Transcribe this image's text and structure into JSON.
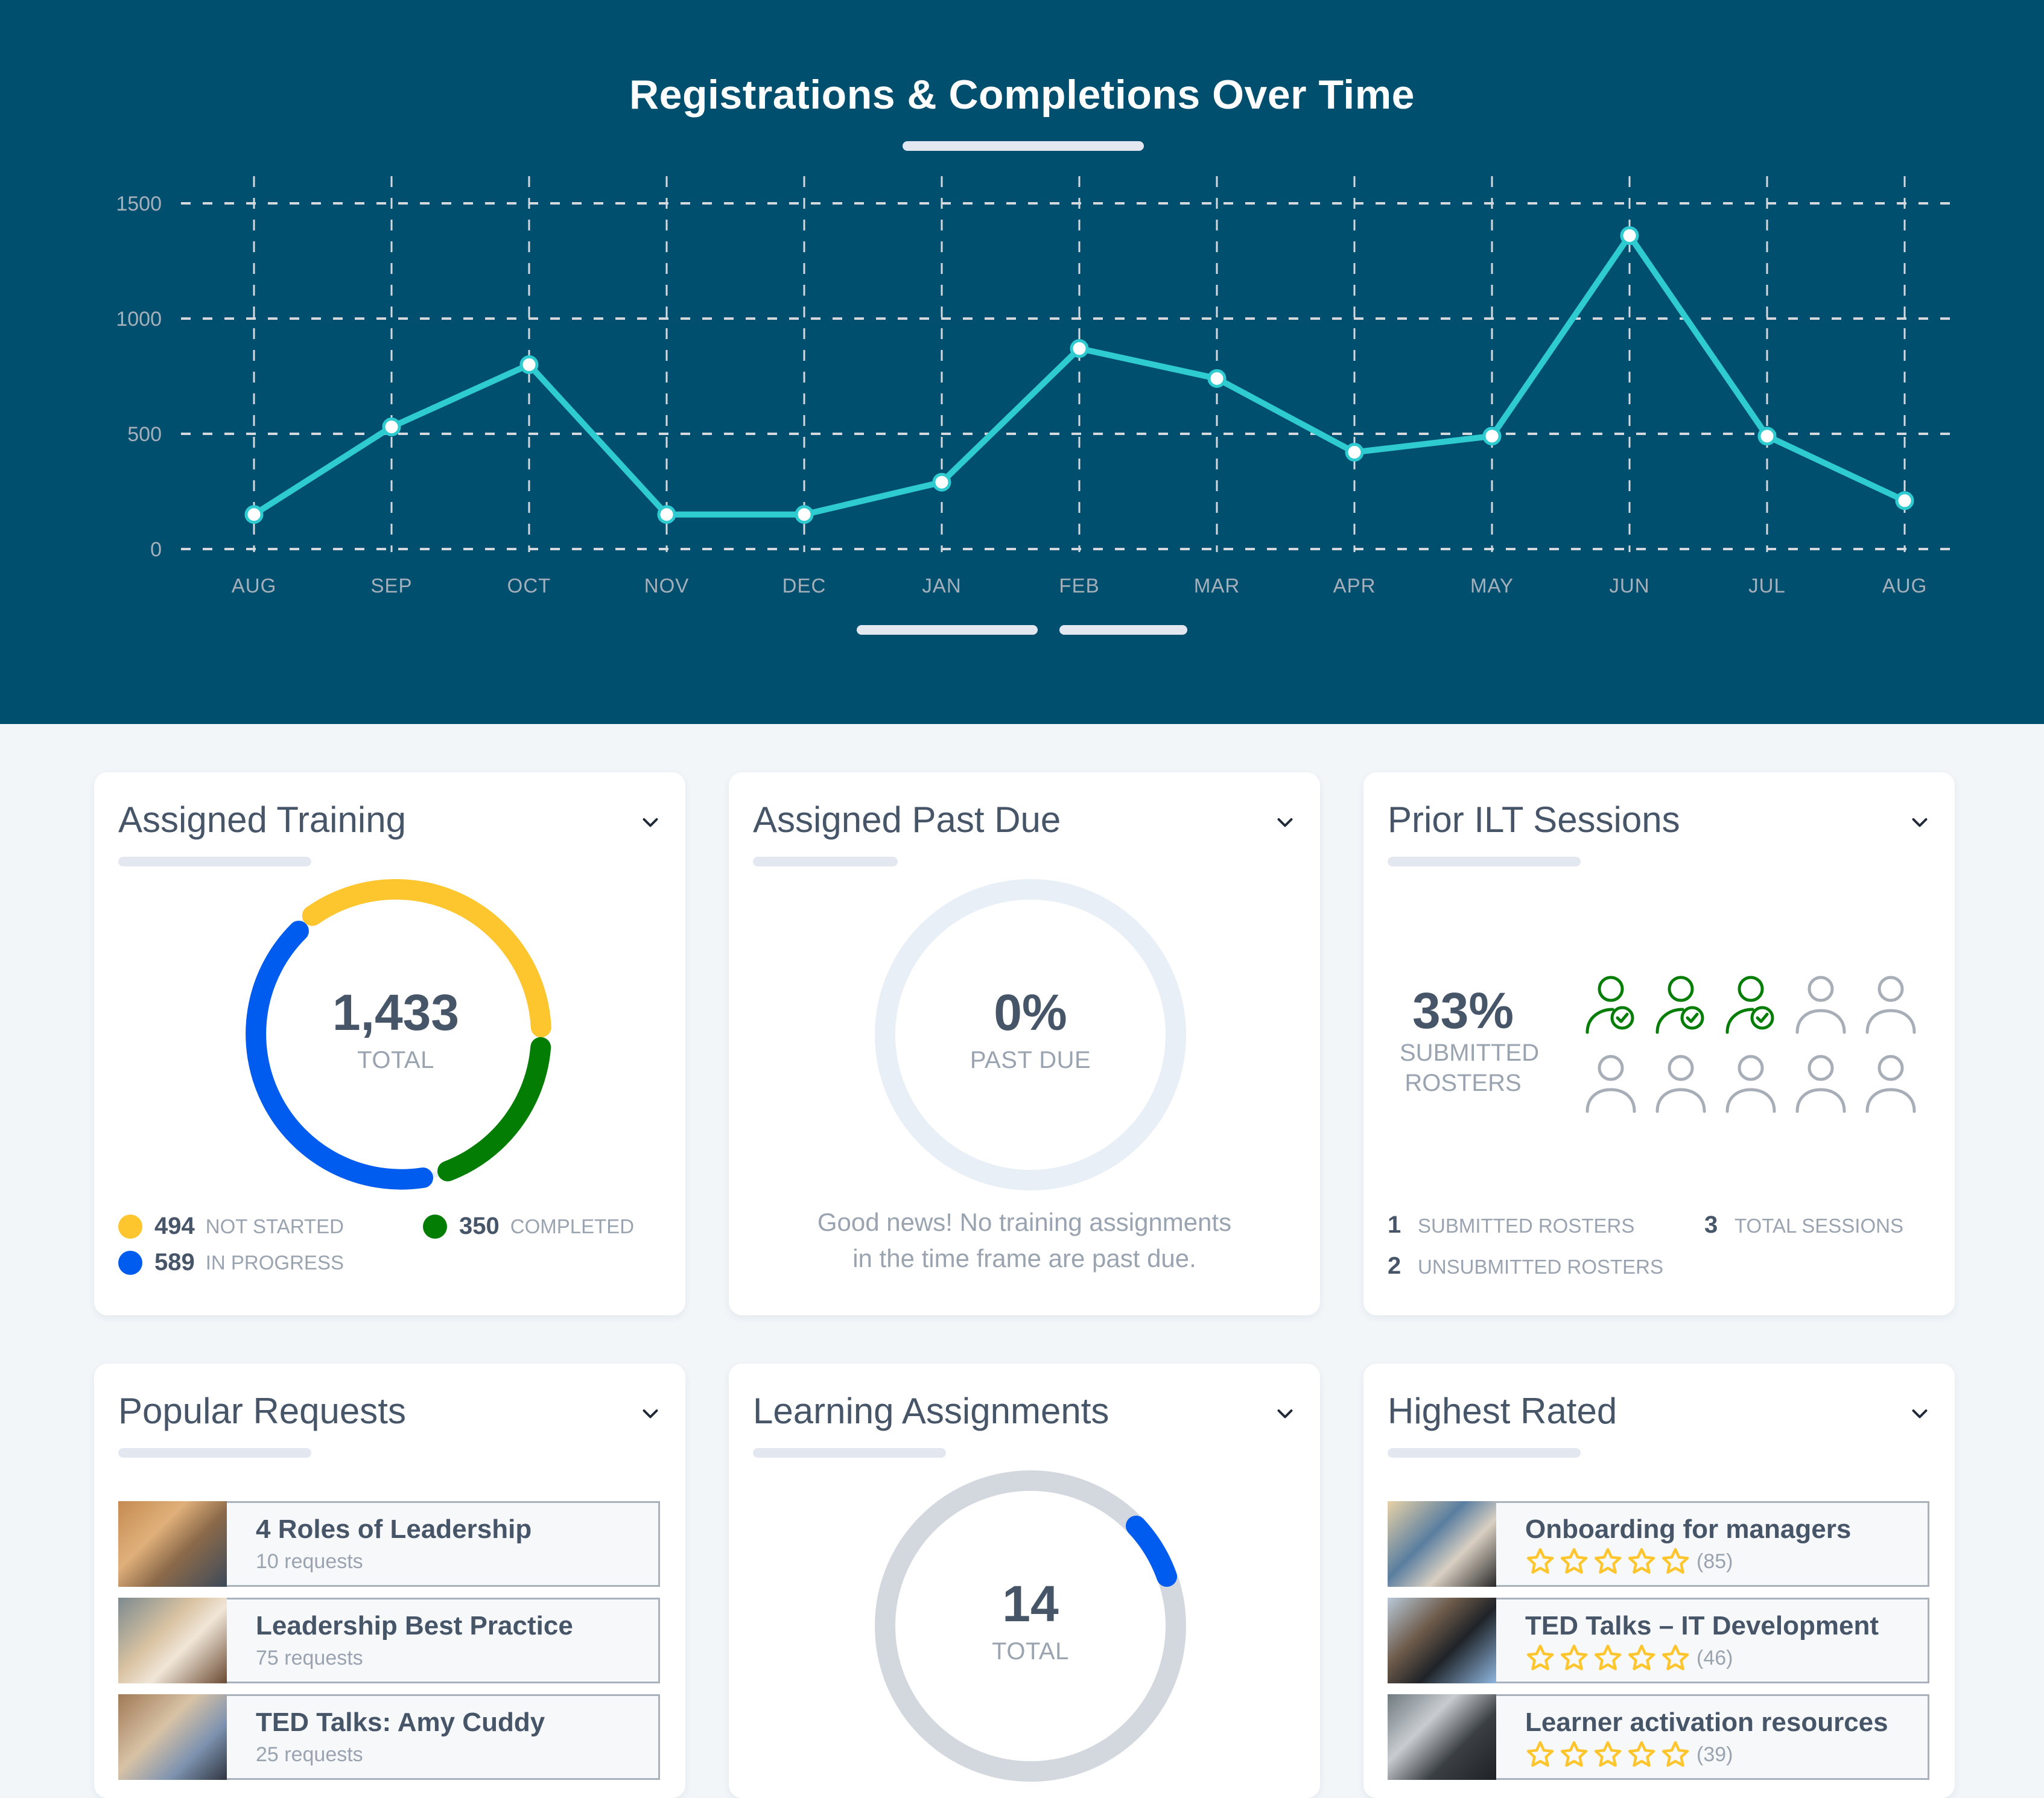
{
  "header": {
    "title": "Registrations & Completions Over Time"
  },
  "chart_data": {
    "type": "line",
    "title": "Registrations & Completions Over Time",
    "xlabel": "",
    "ylabel": "",
    "categories": [
      "AUG",
      "SEP",
      "OCT",
      "NOV",
      "DEC",
      "JAN",
      "FEB",
      "MAR",
      "APR",
      "MAY",
      "JUN",
      "JUL",
      "AUG"
    ],
    "values": [
      150,
      530,
      800,
      150,
      150,
      290,
      870,
      740,
      420,
      490,
      1360,
      490,
      210
    ],
    "yticks": [
      "1500",
      "1000",
      "500",
      "0"
    ],
    "ylim": [
      0,
      1500
    ],
    "grid": true,
    "legend": null,
    "line_color": "#2ecbd1"
  },
  "cards": {
    "assigned_training": {
      "title": "Assigned Training",
      "total": "1,433",
      "total_label": "TOTAL",
      "legend": [
        {
          "value": "494",
          "label": "NOT STARTED",
          "color": "#fec62e"
        },
        {
          "value": "350",
          "label": "COMPLETED",
          "color": "#047d05"
        },
        {
          "value": "589",
          "label": "IN PROGRESS",
          "color": "#005cef"
        }
      ]
    },
    "assigned_past_due": {
      "title": "Assigned Past Due",
      "percent": "0%",
      "percent_label": "PAST DUE",
      "message_line1": "Good news! No training assignments",
      "message_line2": "in the time frame are past due."
    },
    "prior_ilt": {
      "title": "Prior ILT Sessions",
      "percent": "33%",
      "percent_label_line1": "SUBMITTED",
      "percent_label_line2": "ROSTERS",
      "submitted_icons": 3,
      "total_icons": 10,
      "stats": [
        {
          "value": "1",
          "label": "SUBMITTED ROSTERS"
        },
        {
          "value": "3",
          "label": "TOTAL SESSIONS"
        },
        {
          "value": "2",
          "label": "UNSUBMITTED ROSTERS"
        }
      ]
    },
    "popular_requests": {
      "title": "Popular Requests",
      "items": [
        {
          "title": "4 Roles of Leadership",
          "subtitle": "10 requests"
        },
        {
          "title": "Leadership Best Practice",
          "subtitle": "75 requests"
        },
        {
          "title": "TED Talks: Amy Cuddy",
          "subtitle": "25 requests"
        }
      ]
    },
    "learning_assignments": {
      "title": "Learning Assignments",
      "total": "14",
      "total_label": "TOTAL"
    },
    "highest_rated": {
      "title": "Highest Rated",
      "items": [
        {
          "title": "Onboarding for managers",
          "rating_count": "(85)",
          "stars": 5
        },
        {
          "title": "TED Talks – IT Development",
          "rating_count": "(46)",
          "stars": 5
        },
        {
          "title": "Learner activation resources",
          "rating_count": "(39)",
          "stars": 5
        }
      ]
    }
  },
  "colors": {
    "header_bg": "#014f6f",
    "page_bg": "#f2f6f9",
    "line": "#2ecbd1",
    "star": "#fec62e",
    "green": "#047d05",
    "blue": "#005cef",
    "yellow": "#fec62e"
  }
}
